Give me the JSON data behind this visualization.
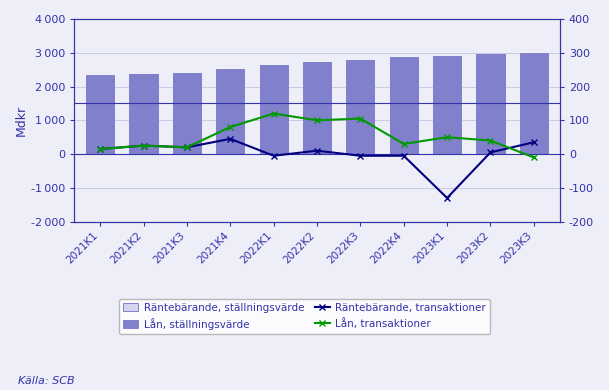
{
  "categories": [
    "2021K1",
    "2021K2",
    "2021K3",
    "2021K4",
    "2022K1",
    "2022K2",
    "2022K3",
    "2022K4",
    "2023K1",
    "2023K2",
    "2023K3"
  ],
  "raantebaarande_stallning": [
    1500,
    1500,
    1500,
    1500,
    1500,
    1500,
    1500,
    1500,
    1500,
    1500,
    1500
  ],
  "laan_stallning": [
    2350,
    2380,
    2400,
    2520,
    2650,
    2720,
    2800,
    2870,
    2900,
    2960,
    2990
  ],
  "raantebaarande_transaktioner": [
    15,
    25,
    20,
    45,
    -5,
    10,
    -5,
    -5,
    -130,
    5,
    35
  ],
  "laan_transaktioner": [
    15,
    25,
    20,
    80,
    120,
    100,
    105,
    30,
    50,
    40,
    -10
  ],
  "left_ylim": [
    -2000,
    4000
  ],
  "right_ylim": [
    -200,
    400
  ],
  "left_yticks": [
    -2000,
    -1000,
    0,
    1000,
    2000,
    3000,
    4000
  ],
  "right_yticks": [
    -200,
    -100,
    0,
    100,
    200,
    300,
    400
  ],
  "ylabel_left": "Mdkr",
  "source_text": "Källa: SCB",
  "color_raantebaarande_stallning": "#d4d4f0",
  "color_laan_stallning": "#8080cc",
  "color_raantebaarande_trans": "#000080",
  "color_laan_trans": "#009900",
  "bg_color": "#eeeef8",
  "legend_labels": [
    "Räntebärande, ställningsvärde",
    "Lån, ställningsvärde",
    "Räntebärande, transaktioner",
    "Lån, transaktioner"
  ],
  "axis_color": "#3333aa",
  "grid_color": "#bbbbdd"
}
